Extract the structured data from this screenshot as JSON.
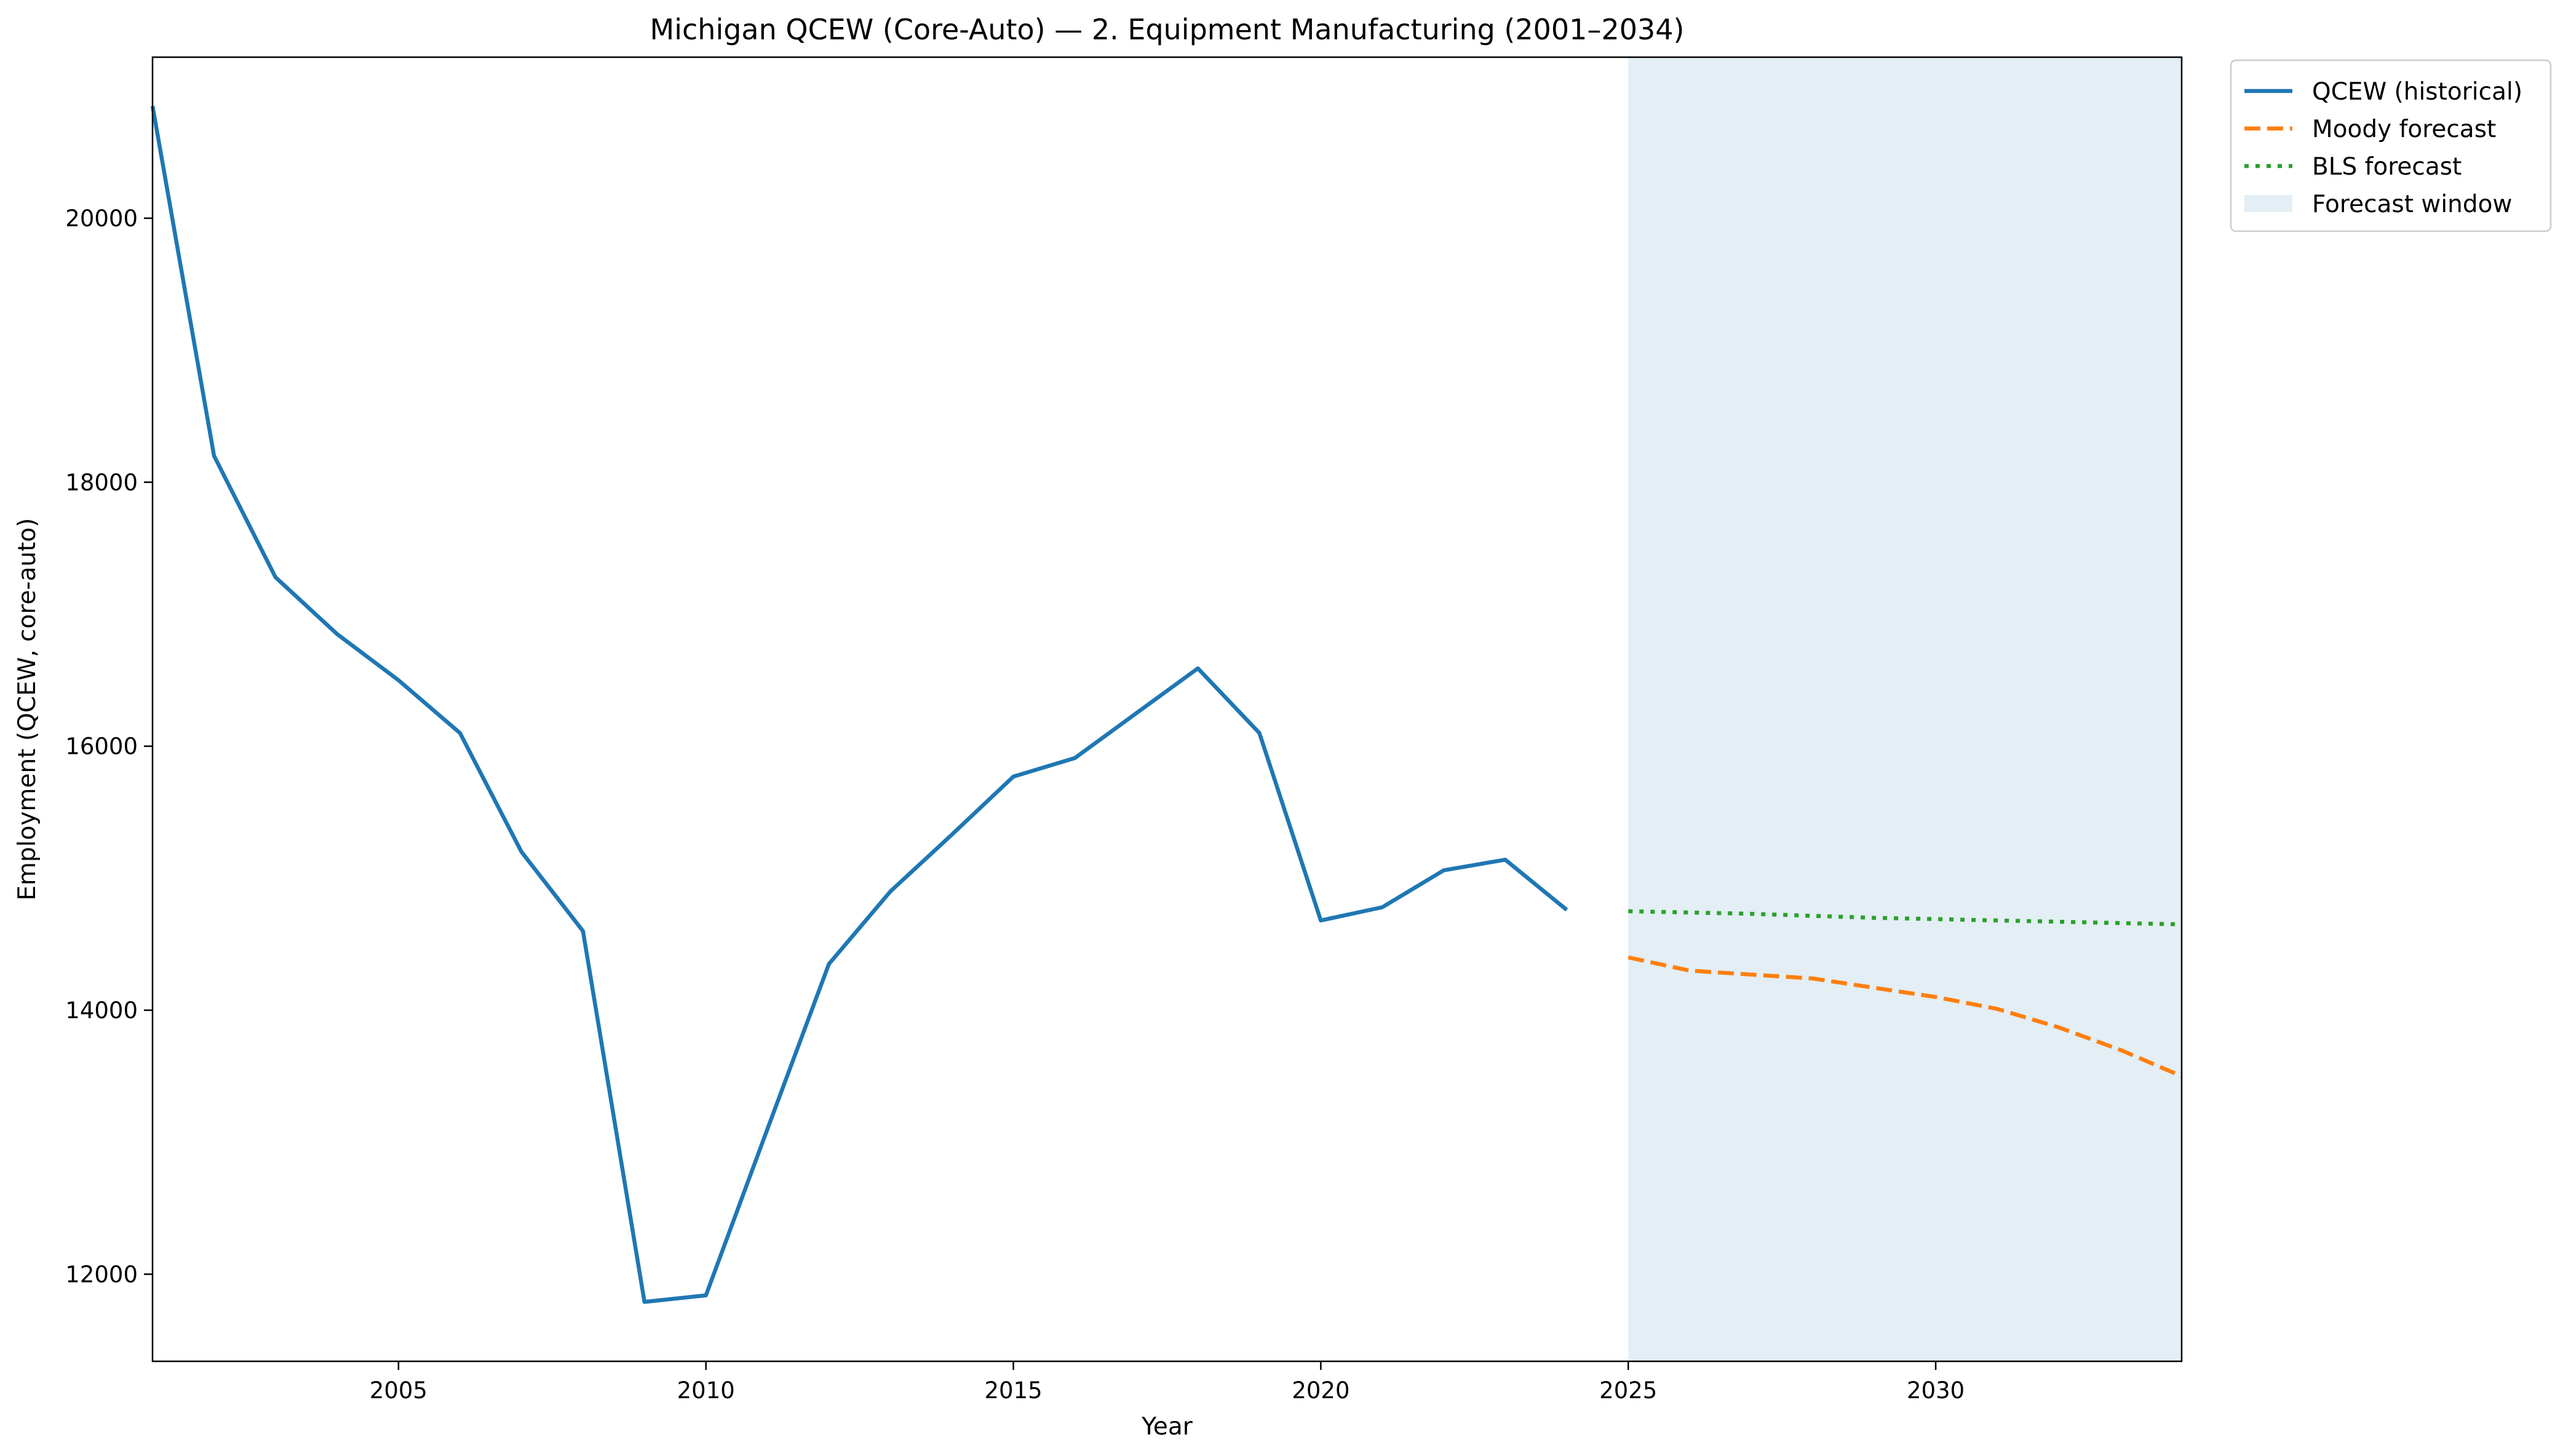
{
  "chart_data": {
    "type": "line",
    "title": "Michigan QCEW (Core-Auto) — 2. Equipment Manufacturing (2001–2034)",
    "xlabel": "Year",
    "ylabel": "Employment (QCEW, core-auto)",
    "xlim": [
      2001,
      2034
    ],
    "ylim": [
      11340,
      21220
    ],
    "x_ticks": [
      2005,
      2010,
      2015,
      2020,
      2025,
      2030
    ],
    "y_ticks": [
      12000,
      14000,
      16000,
      18000,
      20000
    ],
    "grid": false,
    "legend_position": "outside-top-right",
    "forecast_window": {
      "x_start": 2025,
      "x_end": 2034,
      "label": "Forecast window",
      "color": "#e3eef5"
    },
    "series": [
      {
        "name": "QCEW (historical)",
        "style": "solid",
        "color": "#1f77b4",
        "x": [
          2001,
          2002,
          2003,
          2004,
          2005,
          2006,
          2007,
          2008,
          2009,
          2010,
          2011,
          2012,
          2013,
          2014,
          2015,
          2016,
          2017,
          2018,
          2019,
          2020,
          2021,
          2022,
          2023,
          2024
        ],
        "y": [
          20850,
          18200,
          17280,
          16850,
          16500,
          16100,
          15200,
          14600,
          11790,
          11840,
          13100,
          14350,
          14900,
          15330,
          15770,
          15910,
          16250,
          16590,
          16100,
          14680,
          14780,
          15060,
          15140,
          14760
        ]
      },
      {
        "name": "Moody forecast",
        "style": "dashed",
        "color": "#ff7f0e",
        "x": [
          2025,
          2026,
          2027,
          2028,
          2029,
          2030,
          2031,
          2032,
          2033,
          2034
        ],
        "y": [
          14400,
          14300,
          14270,
          14240,
          14170,
          14100,
          14010,
          13870,
          13700,
          13500
        ]
      },
      {
        "name": "BLS forecast",
        "style": "dotted",
        "color": "#2ca02c",
        "x": [
          2025,
          2026,
          2027,
          2028,
          2029,
          2030,
          2031,
          2032,
          2033,
          2034
        ],
        "y": [
          14750,
          14740,
          14730,
          14715,
          14700,
          14690,
          14680,
          14670,
          14660,
          14650
        ]
      }
    ]
  }
}
